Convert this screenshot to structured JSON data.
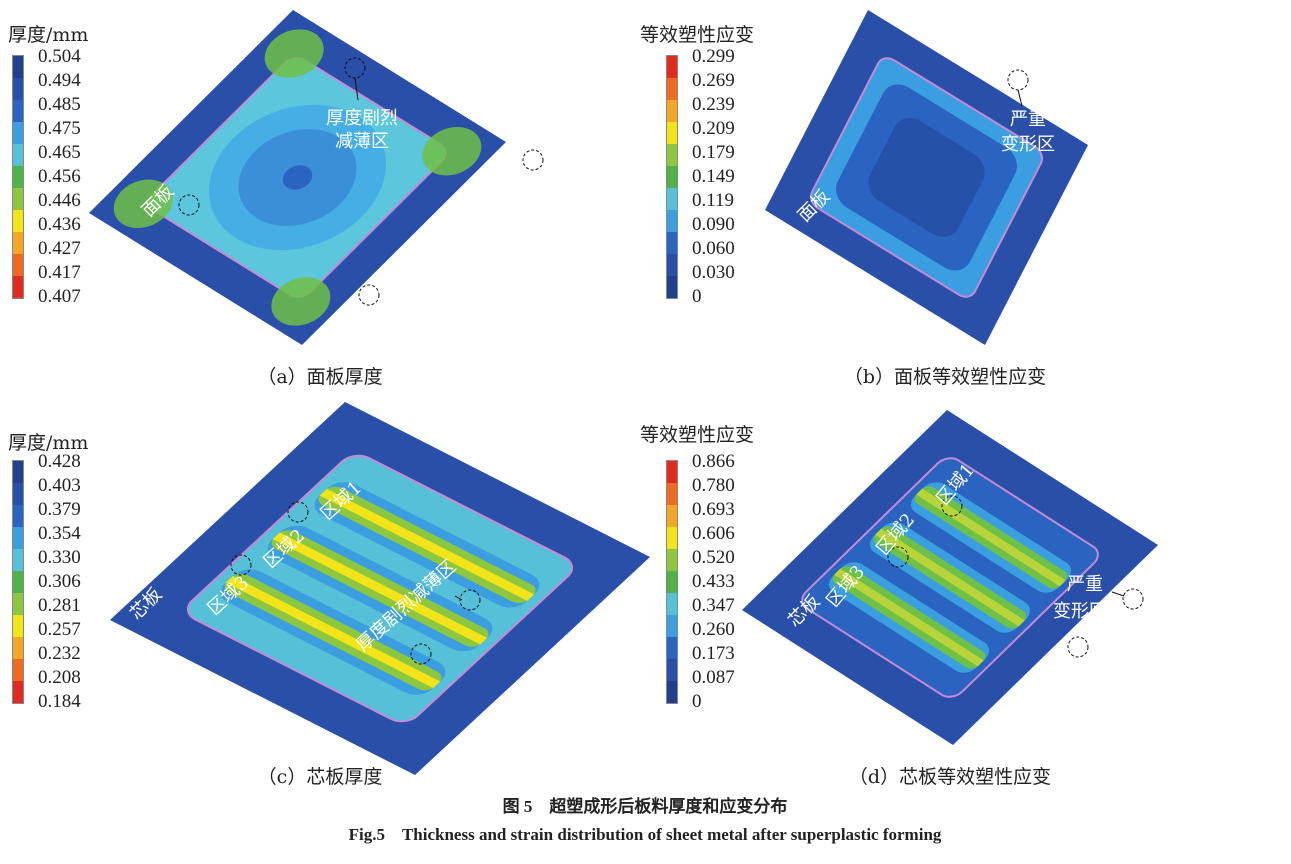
{
  "figure": {
    "caption_cn": "图 5　超塑成形后板料厚度和应变分布",
    "caption_en": "Fig.5　Thickness and strain distribution of sheet metal after superplastic forming"
  },
  "colors": {
    "scale_blue_to_red": [
      "#23408e",
      "#2651a8",
      "#2a64c0",
      "#3a9ee0",
      "#56c0d8",
      "#4fb34a",
      "#8dc63f",
      "#f2e418",
      "#f5a623",
      "#ef6b22",
      "#e32a21"
    ],
    "plate": "#2a4fa8",
    "edge": "#c58bd6"
  },
  "panels": [
    {
      "id": "a",
      "caption": "（a）面板厚度",
      "legend_title": "厚度/mm",
      "legend_order": "blue-top",
      "ticks": [
        "0.504",
        "0.494",
        "0.485",
        "0.475",
        "0.465",
        "0.456",
        "0.446",
        "0.436",
        "0.427",
        "0.417",
        "0.407"
      ],
      "labels": {
        "sheet": "面板",
        "zone_line1": "厚度剧烈",
        "zone_line2": "减薄区"
      }
    },
    {
      "id": "b",
      "caption": "（b）面板等效塑性应变",
      "legend_title": "等效塑性应变",
      "legend_order": "red-top",
      "ticks": [
        "0.299",
        "0.269",
        "0.239",
        "0.209",
        "0.179",
        "0.149",
        "0.119",
        "0.090",
        "0.060",
        "0.030",
        "0"
      ],
      "labels": {
        "sheet": "面板",
        "zone_line1": "严重",
        "zone_line2": "变形区"
      }
    },
    {
      "id": "c",
      "caption": "（c）芯板厚度",
      "legend_title": "厚度/mm",
      "legend_order": "blue-top",
      "ticks": [
        "0.428",
        "0.403",
        "0.379",
        "0.354",
        "0.330",
        "0.306",
        "0.281",
        "0.257",
        "0.232",
        "0.208",
        "0.184"
      ],
      "labels": {
        "sheet": "芯板",
        "region1": "区域1",
        "region2": "区域2",
        "region3": "区域3",
        "zone": "厚度剧烈减薄区"
      }
    },
    {
      "id": "d",
      "caption": "（d）芯板等效塑性应变",
      "legend_title": "等效塑性应变",
      "legend_order": "red-top",
      "ticks": [
        "0.866",
        "0.780",
        "0.693",
        "0.606",
        "0.520",
        "0.433",
        "0.347",
        "0.260",
        "0.173",
        "0.087",
        "0"
      ],
      "labels": {
        "sheet": "芯板",
        "region1": "区域1",
        "region2": "区域2",
        "region3": "区域3",
        "zone_line1": "严重",
        "zone_line2": "变形区"
      }
    }
  ]
}
